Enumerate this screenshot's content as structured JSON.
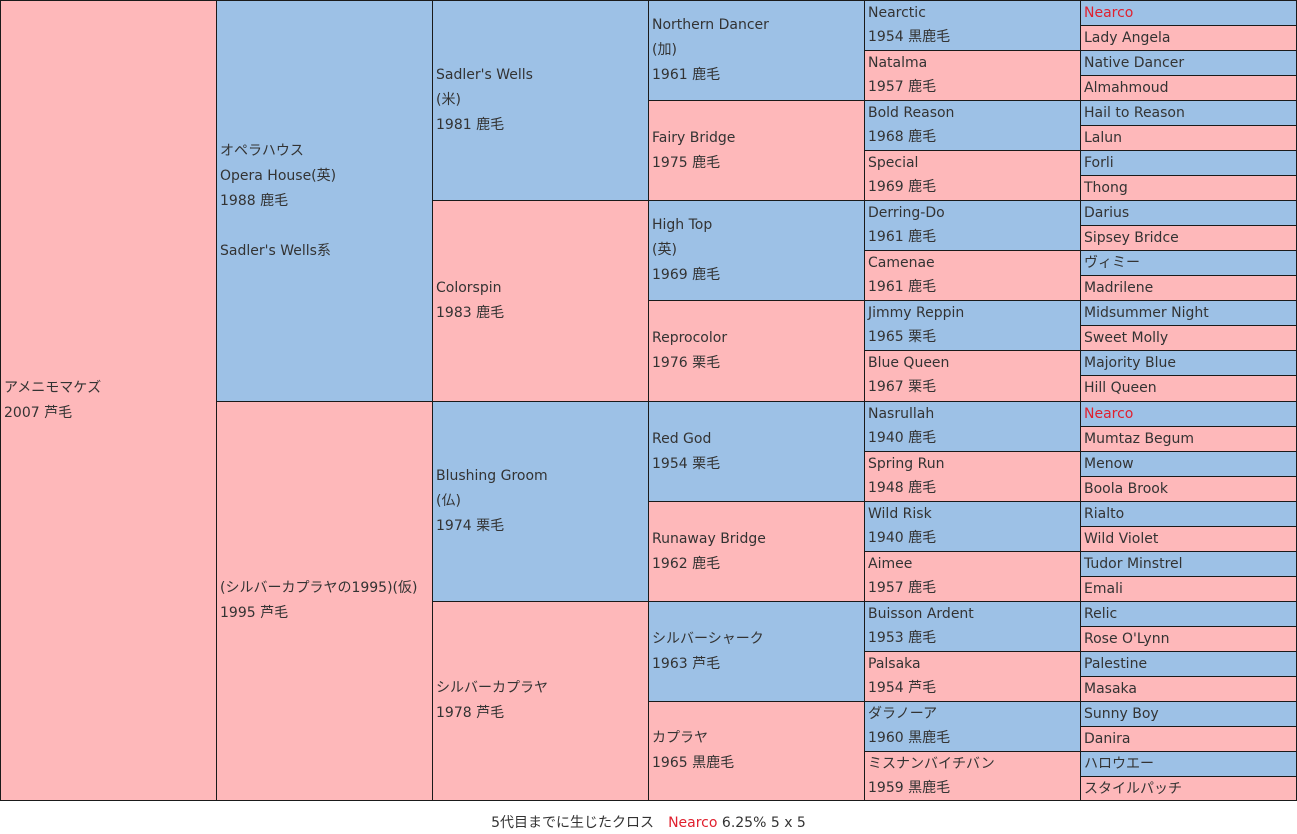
{
  "gen1": [
    {
      "lines": [
        "アメニモマケズ",
        "2007 芦毛"
      ],
      "sex": "female"
    }
  ],
  "gen2": [
    {
      "lines": [
        "オペラハウス",
        "Opera House(英)",
        "1988 鹿毛",
        "",
        "Sadler's Wells系"
      ],
      "sex": "male"
    },
    {
      "lines": [
        "(シルバーカプラヤの1995)(仮)",
        "1995 芦毛"
      ],
      "sex": "female"
    }
  ],
  "gen3": [
    {
      "lines": [
        "Sadler's Wells",
        "(米)",
        "1981 鹿毛"
      ],
      "sex": "male"
    },
    {
      "lines": [
        "Colorspin",
        "1983 鹿毛"
      ],
      "sex": "female"
    },
    {
      "lines": [
        "Blushing Groom",
        "(仏)",
        "1974 栗毛"
      ],
      "sex": "male"
    },
    {
      "lines": [
        "シルバーカプラヤ",
        "1978 芦毛"
      ],
      "sex": "female"
    }
  ],
  "gen4": [
    {
      "lines": [
        "Northern Dancer",
        "(加)",
        "1961 鹿毛"
      ],
      "sex": "male"
    },
    {
      "lines": [
        "Fairy Bridge",
        "1975 鹿毛"
      ],
      "sex": "female"
    },
    {
      "lines": [
        "High Top",
        "(英)",
        "1969 鹿毛"
      ],
      "sex": "male"
    },
    {
      "lines": [
        "Reprocolor",
        "1976 栗毛"
      ],
      "sex": "female"
    },
    {
      "lines": [
        "Red God",
        "1954 栗毛"
      ],
      "sex": "male"
    },
    {
      "lines": [
        "Runaway Bridge",
        "1962 鹿毛"
      ],
      "sex": "female"
    },
    {
      "lines": [
        "シルバーシャーク",
        "1963 芦毛"
      ],
      "sex": "male"
    },
    {
      "lines": [
        "カプラヤ",
        "1965 黒鹿毛"
      ],
      "sex": "female"
    }
  ],
  "gen5": [
    {
      "lines": [
        "Nearctic",
        "1954 黒鹿毛"
      ],
      "sex": "male"
    },
    {
      "lines": [
        "Natalma",
        "1957 鹿毛"
      ],
      "sex": "female"
    },
    {
      "lines": [
        "Bold Reason",
        "1968 鹿毛"
      ],
      "sex": "male"
    },
    {
      "lines": [
        "Special",
        "1969 鹿毛"
      ],
      "sex": "female"
    },
    {
      "lines": [
        "Derring-Do",
        "1961 鹿毛"
      ],
      "sex": "male"
    },
    {
      "lines": [
        "Camenae",
        "1961 鹿毛"
      ],
      "sex": "female"
    },
    {
      "lines": [
        "Jimmy Reppin",
        "1965 栗毛"
      ],
      "sex": "male"
    },
    {
      "lines": [
        "Blue Queen",
        "1967 栗毛"
      ],
      "sex": "female"
    },
    {
      "lines": [
        "Nasrullah",
        "1940 鹿毛"
      ],
      "sex": "male"
    },
    {
      "lines": [
        "Spring Run",
        "1948 鹿毛"
      ],
      "sex": "female"
    },
    {
      "lines": [
        "Wild Risk",
        "1940 鹿毛"
      ],
      "sex": "male"
    },
    {
      "lines": [
        "Aimee",
        "1957 鹿毛"
      ],
      "sex": "female"
    },
    {
      "lines": [
        "Buisson Ardent",
        "1953 鹿毛"
      ],
      "sex": "male"
    },
    {
      "lines": [
        "Palsaka",
        "1954 芦毛"
      ],
      "sex": "female"
    },
    {
      "lines": [
        "ダラノーア",
        "1960 黒鹿毛"
      ],
      "sex": "male"
    },
    {
      "lines": [
        "ミスナンバイチバン",
        "1959 黒鹿毛"
      ],
      "sex": "female"
    }
  ],
  "gen6": [
    {
      "name": "Nearco",
      "sex": "male",
      "cross": true
    },
    {
      "name": "Lady Angela",
      "sex": "female"
    },
    {
      "name": "Native Dancer",
      "sex": "male"
    },
    {
      "name": "Almahmoud",
      "sex": "female"
    },
    {
      "name": "Hail to Reason",
      "sex": "male"
    },
    {
      "name": "Lalun",
      "sex": "female"
    },
    {
      "name": "Forli",
      "sex": "male"
    },
    {
      "name": "Thong",
      "sex": "female"
    },
    {
      "name": "Darius",
      "sex": "male"
    },
    {
      "name": "Sipsey Bridce",
      "sex": "female"
    },
    {
      "name": "ヴィミー",
      "sex": "male"
    },
    {
      "name": "Madrilene",
      "sex": "female"
    },
    {
      "name": "Midsummer Night",
      "sex": "male"
    },
    {
      "name": "Sweet Molly",
      "sex": "female"
    },
    {
      "name": "Majority Blue",
      "sex": "male"
    },
    {
      "name": "Hill Queen",
      "sex": "female"
    },
    {
      "name": "Nearco",
      "sex": "male",
      "cross": true
    },
    {
      "name": "Mumtaz Begum",
      "sex": "female"
    },
    {
      "name": "Menow",
      "sex": "male"
    },
    {
      "name": "Boola Brook",
      "sex": "female"
    },
    {
      "name": "Rialto",
      "sex": "male"
    },
    {
      "name": "Wild Violet",
      "sex": "female"
    },
    {
      "name": "Tudor Minstrel",
      "sex": "male"
    },
    {
      "name": "Emali",
      "sex": "female"
    },
    {
      "name": "Relic",
      "sex": "male"
    },
    {
      "name": "Rose O'Lynn",
      "sex": "female"
    },
    {
      "name": "Palestine",
      "sex": "male"
    },
    {
      "name": "Masaka",
      "sex": "female"
    },
    {
      "name": "Sunny Boy",
      "sex": "male"
    },
    {
      "name": "Danira",
      "sex": "female"
    },
    {
      "name": "ハロウエー",
      "sex": "male"
    },
    {
      "name": "スタイルパッチ",
      "sex": "female"
    }
  ],
  "footer": {
    "label": "5代目までに生じたクロス",
    "cross_name": "Nearco",
    "cross_detail": "6.25% 5 x 5"
  },
  "colors": {
    "male": "#9dc1e6",
    "female": "#feb8ba",
    "cross_text": "#e0202e"
  }
}
